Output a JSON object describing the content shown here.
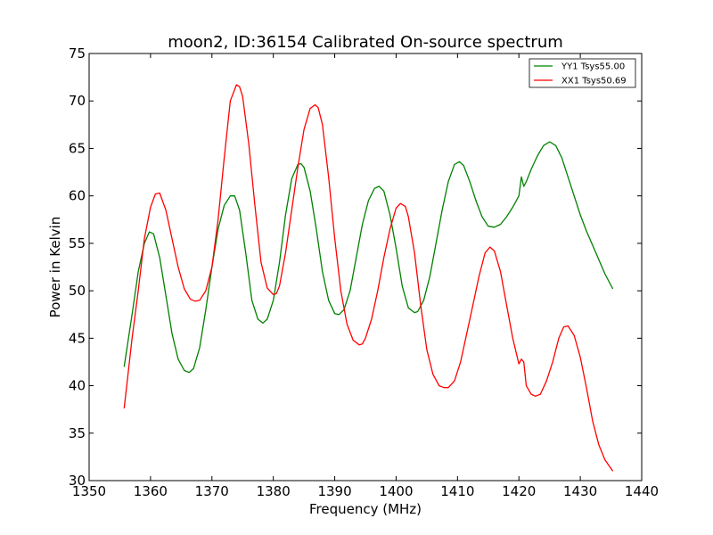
{
  "chart_data": {
    "type": "line",
    "title": "moon2, ID:36154 Calibrated On-source spectrum",
    "xlabel": "Frequency (MHz)",
    "ylabel": "Power in Kelvin",
    "xlim": [
      1350,
      1440
    ],
    "ylim": [
      30,
      75
    ],
    "xticks": [
      1350,
      1360,
      1370,
      1380,
      1390,
      1400,
      1410,
      1420,
      1430,
      1440
    ],
    "yticks": [
      30,
      35,
      40,
      45,
      50,
      55,
      60,
      65,
      70,
      75
    ],
    "grid": false,
    "legend_position": "top-right",
    "series": [
      {
        "name": "YY1 Tsys55.00",
        "color": "#008000",
        "x": [
          1355.7,
          1357,
          1358,
          1359,
          1359.8,
          1360.5,
          1361.5,
          1362.5,
          1363.5,
          1364.5,
          1365.5,
          1366.3,
          1367,
          1368,
          1369,
          1370,
          1371,
          1372,
          1373,
          1373.7,
          1374.5,
          1375.5,
          1376.5,
          1377.5,
          1378.3,
          1379,
          1380,
          1381,
          1382,
          1383,
          1384,
          1384.5,
          1385,
          1386,
          1387,
          1388,
          1389,
          1390,
          1390.7,
          1391.5,
          1392.5,
          1393.5,
          1394.5,
          1395.5,
          1396.5,
          1397.2,
          1398,
          1399,
          1400,
          1401,
          1402,
          1403,
          1403.5,
          1404.5,
          1405.5,
          1406.5,
          1407.5,
          1408.5,
          1409.5,
          1410.3,
          1411,
          1412,
          1413,
          1414,
          1415,
          1416,
          1417,
          1418,
          1419,
          1420,
          1420.4,
          1420.8,
          1421.2,
          1422,
          1423,
          1424,
          1425,
          1426,
          1427,
          1428,
          1429,
          1430,
          1431,
          1432,
          1433,
          1434,
          1435.3
        ],
        "values": [
          42,
          47.5,
          52,
          55,
          56.2,
          56,
          53.5,
          49.5,
          45.5,
          42.8,
          41.6,
          41.4,
          41.8,
          44,
          48,
          52.5,
          56.5,
          59,
          60,
          60,
          58.5,
          54,
          49,
          47,
          46.6,
          47,
          49,
          53,
          58,
          61.8,
          63.3,
          63.4,
          63,
          60.5,
          56.5,
          52,
          49,
          47.6,
          47.5,
          48,
          50,
          53.5,
          57,
          59.5,
          60.8,
          61,
          60.5,
          58,
          54.5,
          50.5,
          48.2,
          47.7,
          47.8,
          49,
          51.5,
          55,
          58.5,
          61.5,
          63.3,
          63.6,
          63.2,
          61.5,
          59.5,
          57.8,
          56.8,
          56.7,
          57,
          57.8,
          58.8,
          60,
          62,
          61,
          61.5,
          62.8,
          64.2,
          65.3,
          65.7,
          65.3,
          64,
          62,
          60,
          58,
          56.3,
          54.8,
          53.3,
          51.8,
          50.2
        ]
      },
      {
        "name": "XX1 Tsys50.69",
        "color": "#ff0000",
        "x": [
          1355.7,
          1357,
          1358,
          1359,
          1360,
          1360.8,
          1361.5,
          1362.5,
          1363.5,
          1364.5,
          1365.5,
          1366.5,
          1367.3,
          1368,
          1369,
          1370,
          1371,
          1372,
          1373,
          1374,
          1374.5,
          1375,
          1376,
          1377,
          1378,
          1379,
          1380,
          1380.5,
          1381,
          1382,
          1383,
          1384,
          1385,
          1386,
          1386.8,
          1387.3,
          1388,
          1389,
          1390,
          1391,
          1392,
          1393,
          1394,
          1394.5,
          1395,
          1396,
          1397,
          1398,
          1399,
          1400,
          1400.7,
          1401.5,
          1402,
          1403,
          1404,
          1405,
          1406,
          1407,
          1407.8,
          1408.5,
          1409.5,
          1410.5,
          1411.5,
          1412.5,
          1413.5,
          1414.5,
          1415.3,
          1416,
          1417,
          1418,
          1419,
          1420,
          1420.4,
          1420.8,
          1421.2,
          1422,
          1422.7,
          1423.5,
          1424.5,
          1425.5,
          1426.5,
          1427.3,
          1428,
          1429,
          1430,
          1431,
          1432,
          1433,
          1434,
          1435.3
        ],
        "values": [
          37.6,
          45,
          50,
          55.5,
          58.8,
          60.2,
          60.3,
          58.5,
          55.5,
          52.5,
          50.2,
          49.1,
          48.9,
          49,
          50,
          52.5,
          57.5,
          64,
          70,
          71.7,
          71.5,
          70.5,
          65.5,
          59,
          53,
          50.3,
          49.6,
          49.7,
          50.5,
          54,
          58.5,
          63,
          67,
          69.2,
          69.6,
          69.3,
          67.5,
          62,
          55.5,
          50,
          46.5,
          44.8,
          44.3,
          44.4,
          45,
          47,
          50,
          53.5,
          56.5,
          58.7,
          59.2,
          58.9,
          57.8,
          54,
          48.5,
          43.8,
          41.2,
          40,
          39.8,
          39.8,
          40.5,
          42.5,
          45.5,
          48.5,
          51.5,
          54,
          54.6,
          54.2,
          52,
          48.5,
          45,
          42.3,
          42.8,
          42.5,
          40,
          39.1,
          38.9,
          39.1,
          40.5,
          42.5,
          45,
          46.2,
          46.3,
          45.3,
          43,
          39.8,
          36.3,
          33.8,
          32.2,
          31
        ]
      }
    ]
  }
}
